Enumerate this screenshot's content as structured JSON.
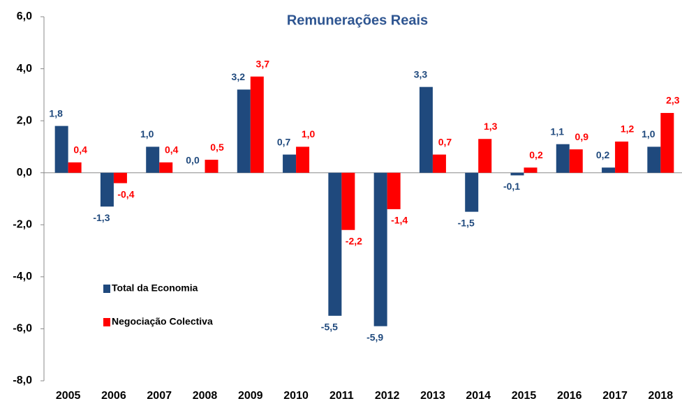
{
  "chart_data": {
    "type": "bar",
    "title": "Remunerações Reais",
    "categories": [
      "2005",
      "2006",
      "2007",
      "2008",
      "2009",
      "2010",
      "2011",
      "2012",
      "2013",
      "2014",
      "2015",
      "2016",
      "2017",
      "2018"
    ],
    "series": [
      {
        "name": "Total da Economia",
        "color": "#1f497d",
        "values": [
          1.8,
          -1.3,
          1.0,
          0.0,
          3.2,
          0.7,
          -5.5,
          -5.9,
          3.3,
          -1.5,
          -0.1,
          1.1,
          0.2,
          1.0
        ],
        "value_labels": [
          "1,8",
          "-1,3",
          "1,0",
          "0,0",
          "3,2",
          "0,7",
          "-5,5",
          "-5,9",
          "3,3",
          "-1,5",
          "-0,1",
          "1,1",
          "0,2",
          "1,0"
        ]
      },
      {
        "name": "Negociação Colectiva",
        "color": "#ff0000",
        "values": [
          0.4,
          -0.4,
          0.4,
          0.5,
          3.7,
          1.0,
          -2.2,
          -1.4,
          0.7,
          1.3,
          0.2,
          0.9,
          1.2,
          2.3
        ],
        "value_labels": [
          "0,4",
          "-0,4",
          "0,4",
          "0,5",
          "3,7",
          "1,0",
          "-2,2",
          "-1,4",
          "0,7",
          "1,3",
          "0,2",
          "0,9",
          "1,2",
          "2,3"
        ]
      }
    ],
    "ylim": [
      -8,
      6
    ],
    "yticks": [
      {
        "value": -8,
        "label": "-8,0"
      },
      {
        "value": -6,
        "label": "-6,0"
      },
      {
        "value": -4,
        "label": "-4,0"
      },
      {
        "value": -2,
        "label": "-2,0"
      },
      {
        "value": 0,
        "label": "0,0"
      },
      {
        "value": 2,
        "label": "2,0"
      },
      {
        "value": 4,
        "label": "4,0"
      },
      {
        "value": 6,
        "label": "6,0"
      }
    ],
    "legend": "lower left",
    "grid": false
  }
}
